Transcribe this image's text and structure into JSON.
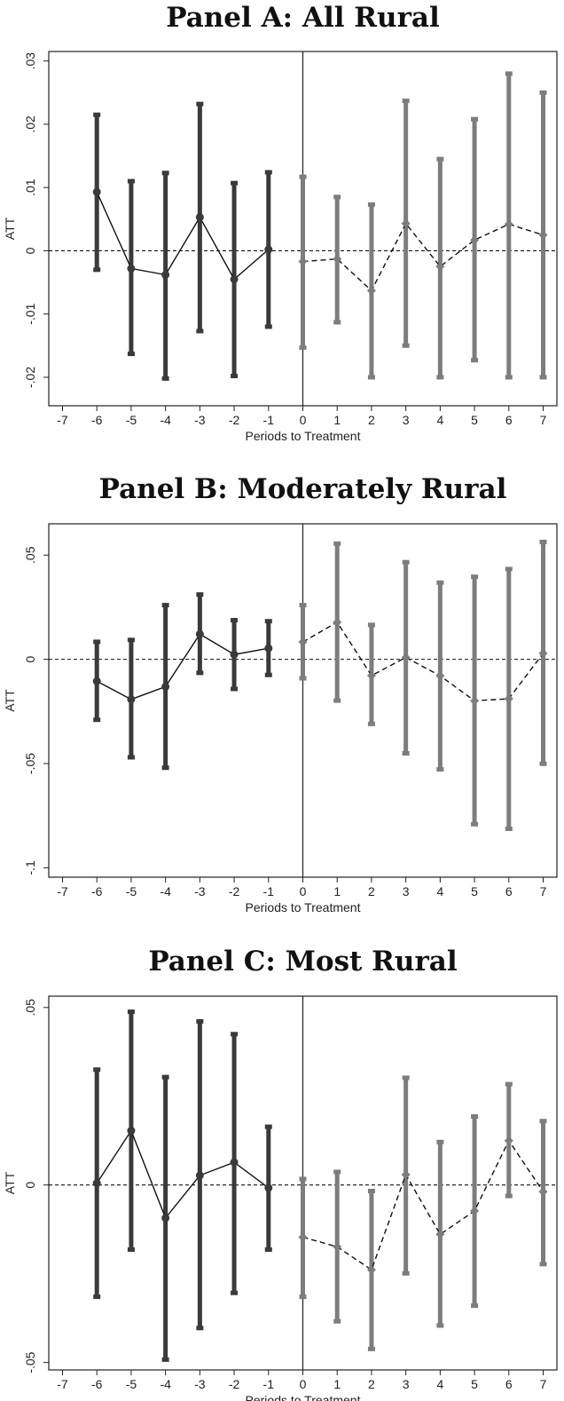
{
  "chart_data": [
    {
      "type": "line",
      "title": "Panel A: All Rural",
      "xlabel": "Periods to Treatment",
      "ylabel": "ATT",
      "xlim": [
        -7.4,
        7.4
      ],
      "ylim": [
        -0.0245,
        0.0315
      ],
      "x_ticks": [
        -7,
        -6,
        -5,
        -4,
        -3,
        -2,
        -1,
        0,
        1,
        2,
        3,
        4,
        5,
        6,
        7
      ],
      "y_ticks": [
        -0.02,
        -0.01,
        0,
        0.01,
        0.02,
        0.03
      ],
      "y_tick_labels": [
        "-.02",
        "-.01",
        "0",
        ".01",
        ".02",
        ".03"
      ],
      "grid": false,
      "reference_line_y": 0,
      "treatment_line_x": 0,
      "series": [
        {
          "x": [
            -6,
            -5,
            -4,
            -3,
            -2,
            -1
          ],
          "values": [
            0.0093,
            -0.0028,
            -0.0038,
            0.0053,
            -0.0045,
            0.0002
          ],
          "ci_low": [
            -0.003,
            -0.0163,
            -0.0202,
            -0.0127,
            -0.0198,
            -0.012
          ],
          "ci_high": [
            0.0215,
            0.011,
            0.0123,
            0.0232,
            0.0107,
            0.0124
          ],
          "marker": "circle",
          "line_style": "solid",
          "color": "#3a3a3a"
        },
        {
          "x": [
            0,
            1,
            2,
            3,
            4,
            5,
            6,
            7
          ],
          "values": [
            -0.0017,
            -0.0013,
            -0.0063,
            0.0043,
            -0.0025,
            0.0017,
            0.0042,
            0.0025
          ],
          "ci_low": [
            -0.0153,
            -0.0113,
            -0.02,
            -0.015,
            -0.02,
            -0.0173,
            -0.02,
            -0.02
          ],
          "ci_high": [
            0.0117,
            0.0085,
            0.0073,
            0.0237,
            0.0145,
            0.0208,
            0.028,
            0.025
          ],
          "marker": "diamond",
          "line_style": "dashed",
          "color": "#7d7d7d"
        }
      ]
    },
    {
      "type": "line",
      "title": "Panel B: Moderately Rural",
      "xlabel": "Periods to Treatment",
      "ylabel": "ATT",
      "xlim": [
        -7.4,
        7.4
      ],
      "ylim": [
        -0.1045,
        0.065
      ],
      "x_ticks": [
        -7,
        -6,
        -5,
        -4,
        -3,
        -2,
        -1,
        0,
        1,
        2,
        3,
        4,
        5,
        6,
        7
      ],
      "y_ticks": [
        -0.1,
        -0.05,
        0,
        0.05
      ],
      "y_tick_labels": [
        "-.1",
        "-.05",
        "0",
        ".05"
      ],
      "grid": false,
      "reference_line_y": 0,
      "treatment_line_x": 0,
      "series": [
        {
          "x": [
            -6,
            -5,
            -4,
            -3,
            -2,
            -1
          ],
          "values": [
            -0.0105,
            -0.0192,
            -0.0131,
            0.0121,
            0.0023,
            0.0053
          ],
          "ci_low": [
            -0.029,
            -0.047,
            -0.052,
            -0.0065,
            -0.0142,
            -0.0075
          ],
          "ci_high": [
            0.0084,
            0.0093,
            0.026,
            0.0311,
            0.0188,
            0.0183
          ],
          "marker": "circle",
          "line_style": "solid",
          "color": "#3a3a3a"
        },
        {
          "x": [
            0,
            1,
            2,
            3,
            4,
            5,
            6,
            7
          ],
          "values": [
            0.0083,
            0.0178,
            -0.0078,
            0.0009,
            -0.0079,
            -0.0199,
            -0.0189,
            0.0029
          ],
          "ci_low": [
            -0.0091,
            -0.0198,
            -0.031,
            -0.0451,
            -0.0528,
            -0.0791,
            -0.0813,
            -0.0501
          ],
          "ci_high": [
            0.026,
            0.0555,
            0.0165,
            0.0466,
            0.0368,
            0.0396,
            0.0433,
            0.0563
          ],
          "marker": "diamond",
          "line_style": "dashed",
          "color": "#7d7d7d"
        }
      ]
    },
    {
      "type": "line",
      "title": "Panel C: Most Rural",
      "xlabel": "Periods to Treatment",
      "ylabel": "ATT",
      "xlim": [
        -7.4,
        7.4
      ],
      "ylim": [
        -0.0521,
        0.0532
      ],
      "x_ticks": [
        -7,
        -6,
        -5,
        -4,
        -3,
        -2,
        -1,
        0,
        1,
        2,
        3,
        4,
        5,
        6,
        7
      ],
      "y_ticks": [
        -0.05,
        0,
        0.05
      ],
      "y_tick_labels": [
        "-.05",
        "0",
        ".05"
      ],
      "grid": false,
      "reference_line_y": 0,
      "treatment_line_x": 0,
      "series": [
        {
          "x": [
            -6,
            -5,
            -4,
            -3,
            -2,
            -1
          ],
          "values": [
            0.0005,
            0.0153,
            -0.0093,
            0.0027,
            0.0064,
            -0.0008
          ],
          "ci_low": [
            -0.0315,
            -0.0182,
            -0.0492,
            -0.0403,
            -0.0304,
            -0.0182
          ],
          "ci_high": [
            0.0325,
            0.0488,
            0.0304,
            0.0461,
            0.0425,
            0.0164
          ],
          "marker": "circle",
          "line_style": "solid",
          "color": "#3a3a3a"
        },
        {
          "x": [
            0,
            1,
            2,
            3,
            4,
            5,
            6,
            7
          ],
          "values": [
            -0.0147,
            -0.0174,
            -0.0239,
            0.0029,
            -0.0139,
            -0.0073,
            0.0125,
            -0.0019
          ],
          "ci_low": [
            -0.0315,
            -0.0384,
            -0.0462,
            -0.0249,
            -0.0396,
            -0.034,
            -0.0031,
            -0.0223
          ],
          "ci_high": [
            0.0017,
            0.0037,
            -0.0017,
            0.0302,
            0.0121,
            0.0193,
            0.0284,
            0.018
          ],
          "marker": "diamond",
          "line_style": "dashed",
          "color": "#7d7d7d"
        }
      ]
    }
  ]
}
